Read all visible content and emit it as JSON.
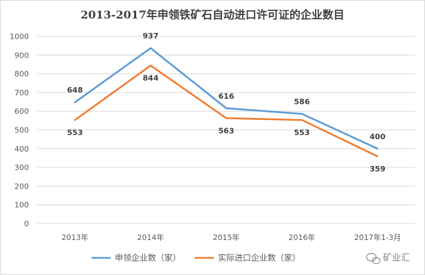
{
  "chart_data": {
    "type": "line",
    "title": "2013-2017年申领铁矿石自动进口许可证的企业数目",
    "categories": [
      "2013年",
      "2014年",
      "2015年",
      "2016年",
      "2017年1-3月"
    ],
    "ylim": [
      0,
      1000
    ],
    "yticks": [
      0,
      100,
      200,
      300,
      400,
      500,
      600,
      700,
      800,
      900,
      1000
    ],
    "grid": true,
    "legend_position": "bottom",
    "series": [
      {
        "name": "申领企业数（家）",
        "color": "#5b9bd5",
        "values": [
          648,
          937,
          616,
          586,
          400
        ]
      },
      {
        "name": "实际进口企业数（家）",
        "color": "#ed7d31",
        "values": [
          553,
          844,
          563,
          553,
          359
        ]
      }
    ]
  },
  "watermark": {
    "text": "矿业汇"
  }
}
